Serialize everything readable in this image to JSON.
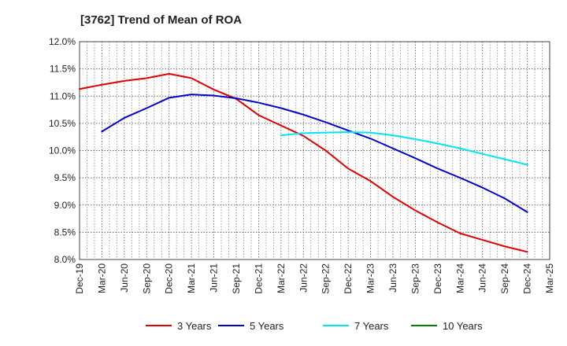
{
  "chart_data": {
    "type": "line",
    "title": "[3762]  Trend of Mean of ROA",
    "xlabel": "",
    "ylabel": "",
    "categories": [
      "Dec-19",
      "Mar-20",
      "Jun-20",
      "Sep-20",
      "Dec-20",
      "Mar-21",
      "Jun-21",
      "Sep-21",
      "Dec-21",
      "Mar-22",
      "Jun-22",
      "Sep-22",
      "Dec-22",
      "Mar-23",
      "Jun-23",
      "Sep-23",
      "Dec-23",
      "Mar-24",
      "Jun-24",
      "Sep-24",
      "Dec-24",
      "Mar-25"
    ],
    "ylim": [
      8.0,
      12.0
    ],
    "yticks": [
      8.0,
      8.5,
      9.0,
      9.5,
      10.0,
      10.5,
      11.0,
      11.5,
      12.0
    ],
    "ytick_labels": [
      "8.0%",
      "8.5%",
      "9.0%",
      "9.5%",
      "10.0%",
      "10.5%",
      "11.0%",
      "11.5%",
      "12.0%"
    ],
    "grid": true,
    "legend_position": "bottom",
    "series": [
      {
        "name": "3 Years",
        "color": "#e00000",
        "values": [
          11.13,
          11.21,
          11.28,
          11.33,
          11.41,
          11.33,
          11.12,
          10.95,
          10.65,
          10.46,
          10.27,
          10.0,
          9.67,
          9.44,
          9.15,
          8.9,
          8.68,
          8.48,
          8.36,
          8.24,
          8.14,
          null
        ]
      },
      {
        "name": "5 Years",
        "color": "#0000cc",
        "values": [
          null,
          10.35,
          10.6,
          10.78,
          10.97,
          11.03,
          11.01,
          10.96,
          10.88,
          10.78,
          10.66,
          10.52,
          10.37,
          10.22,
          10.04,
          9.86,
          9.67,
          9.5,
          9.32,
          9.12,
          8.87,
          null
        ]
      },
      {
        "name": "7 Years",
        "color": "#00e5ee",
        "values": [
          null,
          null,
          null,
          null,
          null,
          null,
          null,
          null,
          null,
          10.28,
          10.32,
          10.33,
          10.34,
          10.33,
          10.28,
          10.21,
          10.13,
          10.04,
          9.94,
          9.84,
          9.74,
          null
        ]
      },
      {
        "name": "10 Years",
        "color": "#008000",
        "values": [
          null,
          null,
          null,
          null,
          null,
          null,
          null,
          null,
          null,
          null,
          null,
          null,
          null,
          null,
          null,
          null,
          null,
          null,
          null,
          null,
          null,
          null
        ]
      }
    ]
  }
}
